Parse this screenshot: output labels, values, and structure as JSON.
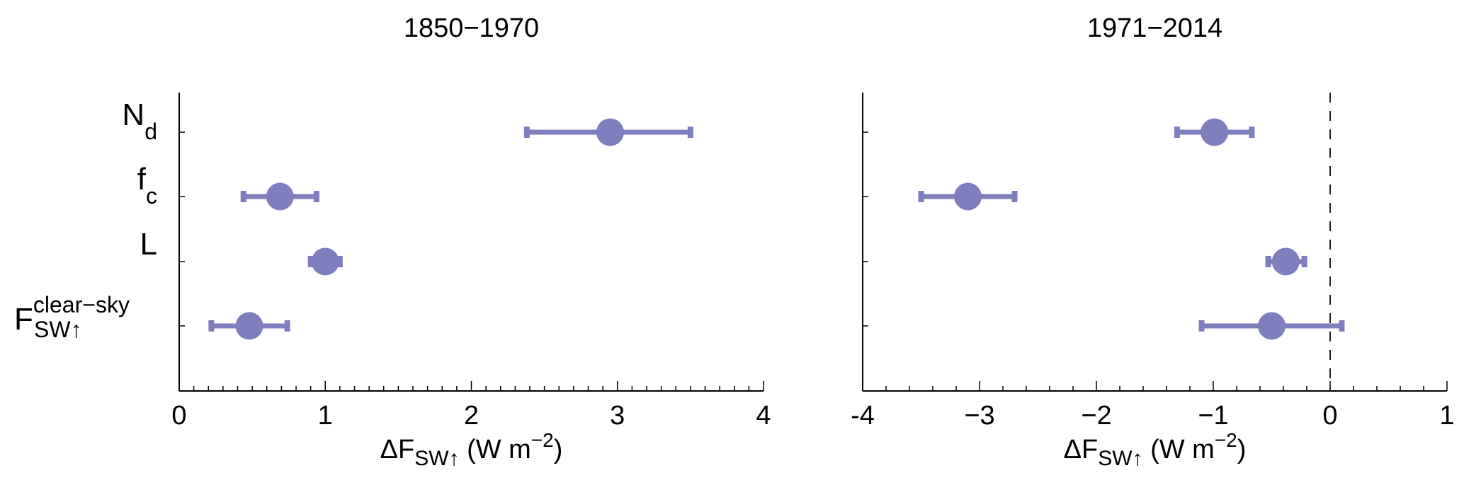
{
  "chart_data": [
    {
      "type": "scatter",
      "subtype": "dot-with-horizontal-error-bars",
      "title": "1850−1970",
      "xlabel": {
        "main": "ΔF",
        "sub": "SW↑",
        "unit": " (W m",
        "unit_sup": "−2",
        "close": ")"
      },
      "xlim": [
        0,
        4
      ],
      "xticks": [
        0,
        1,
        2,
        3,
        4
      ],
      "xtick_labels": [
        "0",
        "1",
        "2",
        "3",
        "4"
      ],
      "minor_tick_step": 0.1,
      "zero_line": false,
      "categories": [
        "N_d",
        "f_c",
        "L",
        "F_SW↑^clear-sky"
      ],
      "category_labels": [
        {
          "main": "N",
          "sub": "d",
          "sup": ""
        },
        {
          "main": "f",
          "sub": "c",
          "sup": ""
        },
        {
          "main": "L",
          "sub": "",
          "sup": ""
        },
        {
          "main": "F",
          "sub": "SW↑",
          "sup": "clear−sky"
        }
      ],
      "values": [
        2.95,
        0.69,
        1.0,
        0.48
      ],
      "error_low": [
        2.38,
        0.44,
        0.9,
        0.22
      ],
      "error_high": [
        3.5,
        0.94,
        1.1,
        0.74
      ],
      "grid": false
    },
    {
      "type": "scatter",
      "subtype": "dot-with-horizontal-error-bars",
      "title": "1971−2014",
      "xlabel": {
        "main": "ΔF",
        "sub": "SW↑",
        "unit": " (W m",
        "unit_sup": "−2",
        "close": ")"
      },
      "xlim": [
        -4,
        1
      ],
      "xticks": [
        -4,
        -3,
        -2,
        -1,
        0,
        1
      ],
      "xtick_labels": [
        "-4",
        "−3",
        "−2",
        "−1",
        "0",
        "1"
      ],
      "minor_tick_step": 0.2,
      "zero_line": true,
      "categories": [
        "N_d",
        "f_c",
        "L",
        "F_SW↑^clear-sky"
      ],
      "values": [
        -0.99,
        -3.1,
        -0.38,
        -0.5
      ],
      "error_low": [
        -1.31,
        -3.5,
        -0.53,
        -1.1
      ],
      "error_high": [
        -0.67,
        -2.7,
        -0.22,
        0.1
      ],
      "grid": false
    }
  ],
  "colors": {
    "marker": "#7f7fbf",
    "axis": "#000000"
  }
}
